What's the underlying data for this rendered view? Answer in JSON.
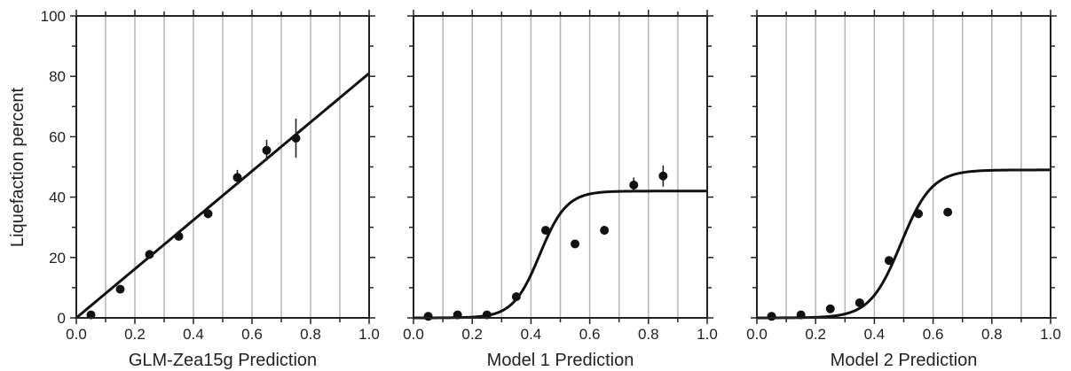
{
  "chart_data": [
    {
      "type": "scatter",
      "xlabel": "GLM-Zea15g Prediction",
      "ylabel": "Liquefaction percent",
      "xlim": [
        0.0,
        1.0
      ],
      "ylim": [
        0,
        100
      ],
      "x_ticks": [
        "0.0",
        "0.2",
        "0.4",
        "0.6",
        "0.8",
        "1.0"
      ],
      "y_ticks": [
        "0",
        "20",
        "40",
        "60",
        "80",
        "100"
      ],
      "grid": "vertical every 0.1",
      "points": [
        {
          "x": 0.05,
          "y": 1,
          "err": 0
        },
        {
          "x": 0.15,
          "y": 9.5,
          "err": 0
        },
        {
          "x": 0.25,
          "y": 21,
          "err": 0
        },
        {
          "x": 0.35,
          "y": 27,
          "err": 0
        },
        {
          "x": 0.45,
          "y": 34.5,
          "err": 1.5
        },
        {
          "x": 0.55,
          "y": 46.5,
          "err": 2.5
        },
        {
          "x": 0.65,
          "y": 55.5,
          "err": 3.5
        },
        {
          "x": 0.75,
          "y": 59.5,
          "err": 6.5
        }
      ],
      "fit": {
        "kind": "linear",
        "intercept": 0,
        "slope": 81
      }
    },
    {
      "type": "scatter",
      "xlabel": "Model 1 Prediction",
      "ylabel": "",
      "xlim": [
        0.0,
        1.0
      ],
      "ylim": [
        0,
        100
      ],
      "x_ticks": [
        "0.0",
        "0.2",
        "0.4",
        "0.6",
        "0.8",
        "1.0"
      ],
      "grid": "vertical every 0.1",
      "points": [
        {
          "x": 0.05,
          "y": 0.5,
          "err": 0
        },
        {
          "x": 0.15,
          "y": 1,
          "err": 0
        },
        {
          "x": 0.25,
          "y": 1,
          "err": 0
        },
        {
          "x": 0.35,
          "y": 7,
          "err": 0
        },
        {
          "x": 0.45,
          "y": 29,
          "err": 0
        },
        {
          "x": 0.55,
          "y": 24.5,
          "err": 0
        },
        {
          "x": 0.65,
          "y": 29,
          "err": 1.5
        },
        {
          "x": 0.75,
          "y": 44,
          "err": 2.5
        },
        {
          "x": 0.85,
          "y": 47,
          "err": 3.5
        }
      ],
      "fit": {
        "kind": "logistic",
        "max": 42,
        "mid": 0.43,
        "k": 22
      }
    },
    {
      "type": "scatter",
      "xlabel": "Model 2 Prediction",
      "ylabel": "",
      "xlim": [
        0.0,
        1.0
      ],
      "ylim": [
        0,
        100
      ],
      "x_ticks": [
        "0.0",
        "0.2",
        "0.4",
        "0.6",
        "0.8",
        "1.0"
      ],
      "grid": "vertical every 0.1",
      "points": [
        {
          "x": 0.05,
          "y": 0.5,
          "err": 0
        },
        {
          "x": 0.15,
          "y": 1,
          "err": 0
        },
        {
          "x": 0.25,
          "y": 3,
          "err": 0
        },
        {
          "x": 0.35,
          "y": 5,
          "err": 0
        },
        {
          "x": 0.45,
          "y": 19,
          "err": 0
        },
        {
          "x": 0.55,
          "y": 34.5,
          "err": 0
        },
        {
          "x": 0.65,
          "y": 35,
          "err": 0
        }
      ],
      "fit": {
        "kind": "logistic",
        "max": 49,
        "mid": 0.49,
        "k": 19
      }
    }
  ]
}
